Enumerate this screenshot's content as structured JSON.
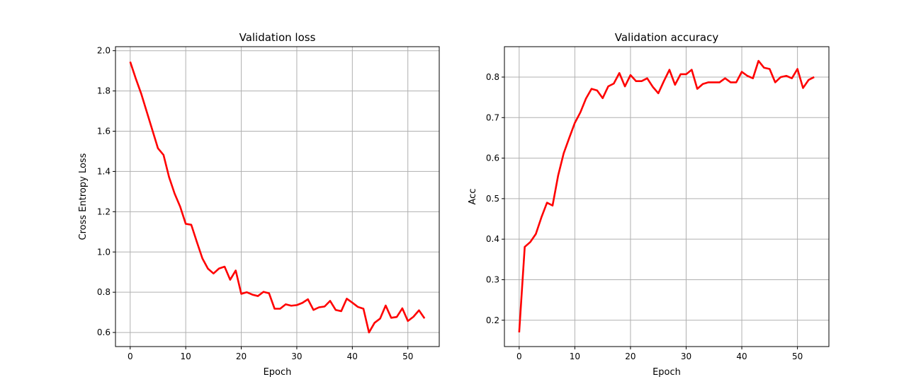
{
  "chart_data": [
    {
      "type": "line",
      "title": "Validation loss",
      "xlabel": "Epoch",
      "ylabel": "Cross Entropy Loss",
      "xlim": [
        -2.65,
        55.65
      ],
      "ylim": [
        0.53,
        2.02
      ],
      "xticks": [
        0,
        10,
        20,
        30,
        40,
        50
      ],
      "yticks": [
        0.6,
        0.8,
        1.0,
        1.2,
        1.4,
        1.6,
        1.8,
        2.0
      ],
      "xtick_labels": [
        "0",
        "10",
        "20",
        "30",
        "40",
        "50"
      ],
      "ytick_labels": [
        "0.6",
        "0.8",
        "1.0",
        "1.2",
        "1.4",
        "1.6",
        "1.8",
        "2.0"
      ],
      "grid": true,
      "color": "#ff0000",
      "series": [
        {
          "values": [
            1.945,
            1.862,
            1.785,
            1.695,
            1.605,
            1.515,
            1.482,
            1.372,
            1.29,
            1.225,
            1.14,
            1.135,
            1.05,
            0.968,
            0.917,
            0.893,
            0.918,
            0.927,
            0.862,
            0.908,
            0.792,
            0.8,
            0.788,
            0.781,
            0.802,
            0.795,
            0.718,
            0.718,
            0.74,
            0.733,
            0.736,
            0.747,
            0.765,
            0.712,
            0.725,
            0.729,
            0.757,
            0.712,
            0.706,
            0.768,
            0.748,
            0.727,
            0.718,
            0.6,
            0.648,
            0.669,
            0.734,
            0.673,
            0.677,
            0.72,
            0.657,
            0.678,
            0.71,
            0.67
          ]
        }
      ]
    },
    {
      "type": "line",
      "title": "Validation accuracy",
      "xlabel": "Epoch",
      "ylabel": "Acc",
      "xlim": [
        -2.65,
        55.65
      ],
      "ylim": [
        0.135,
        0.875
      ],
      "xticks": [
        0,
        10,
        20,
        30,
        40,
        50
      ],
      "yticks": [
        0.2,
        0.3,
        0.4,
        0.5,
        0.6,
        0.7,
        0.8
      ],
      "xtick_labels": [
        "0",
        "10",
        "20",
        "30",
        "40",
        "50"
      ],
      "ytick_labels": [
        "0.2",
        "0.3",
        "0.4",
        "0.5",
        "0.6",
        "0.7",
        "0.8"
      ],
      "grid": true,
      "color": "#ff0000",
      "series": [
        {
          "values": [
            0.17,
            0.381,
            0.393,
            0.413,
            0.454,
            0.49,
            0.483,
            0.557,
            0.612,
            0.65,
            0.687,
            0.713,
            0.747,
            0.771,
            0.767,
            0.748,
            0.777,
            0.784,
            0.81,
            0.777,
            0.805,
            0.79,
            0.79,
            0.797,
            0.776,
            0.76,
            0.79,
            0.818,
            0.781,
            0.807,
            0.807,
            0.818,
            0.771,
            0.783,
            0.787,
            0.787,
            0.787,
            0.797,
            0.787,
            0.787,
            0.813,
            0.803,
            0.797,
            0.84,
            0.823,
            0.82,
            0.787,
            0.8,
            0.803,
            0.797,
            0.82,
            0.773,
            0.793,
            0.8
          ]
        }
      ]
    }
  ]
}
